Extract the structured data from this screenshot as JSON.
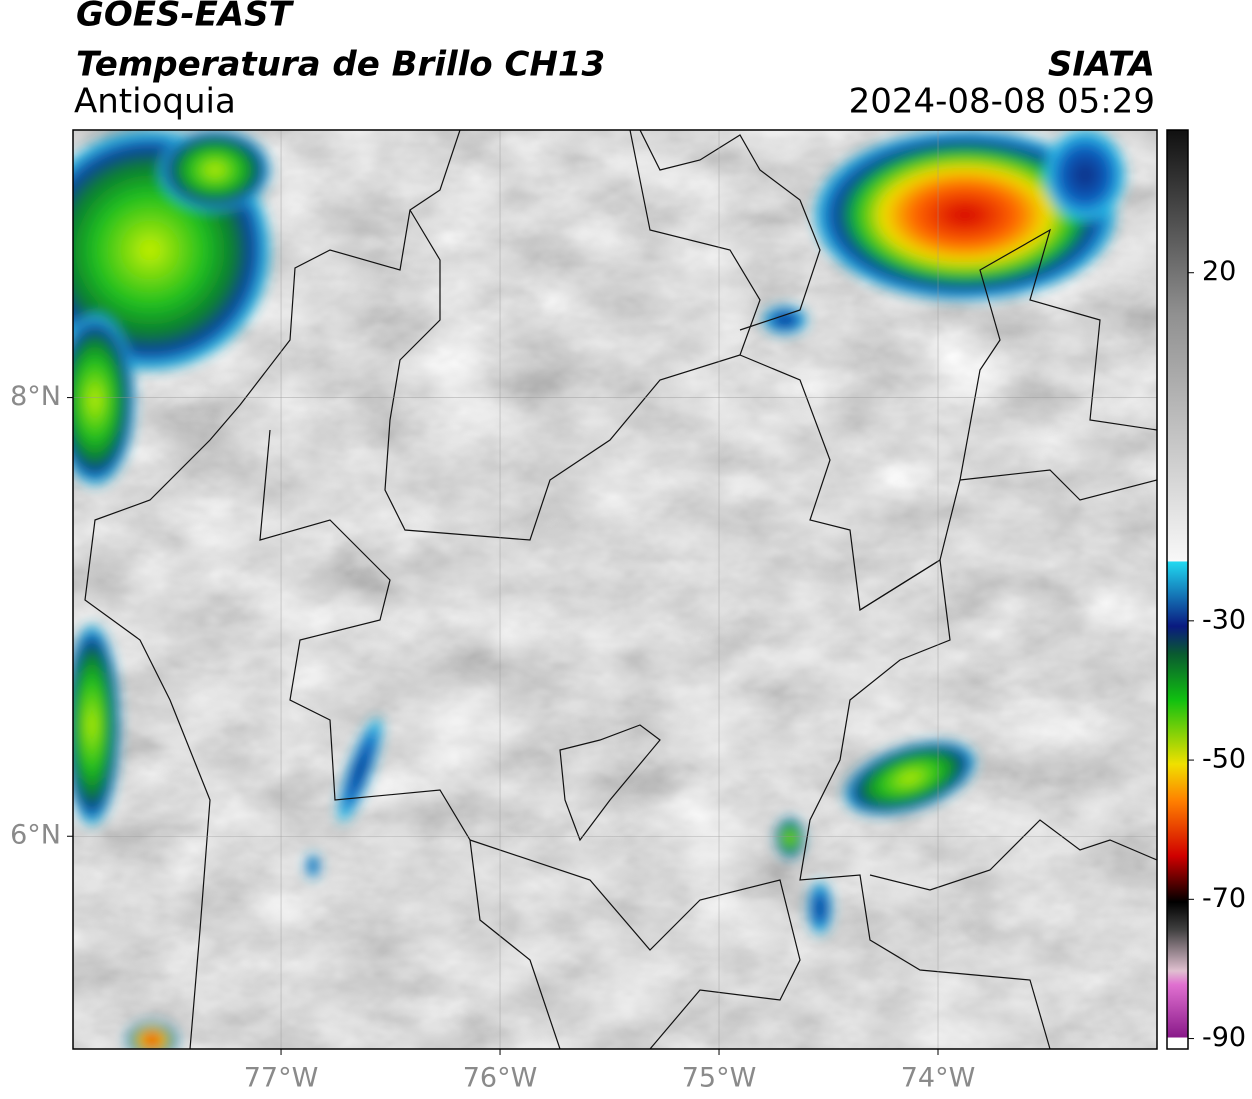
{
  "header": {
    "title": "GOES-EAST",
    "subtitle": "Temperatura de Brillo CH13",
    "region": "Antioquia",
    "source": "SIATA",
    "datetime": "2024-08-08 05:29"
  },
  "map": {
    "xlim": [
      -77.95,
      -73.0
    ],
    "ylim": [
      5.03,
      9.22
    ],
    "xticks": [
      {
        "value": -77,
        "label": "77°W"
      },
      {
        "value": -76,
        "label": "76°W"
      },
      {
        "value": -75,
        "label": "75°W"
      },
      {
        "value": -74,
        "label": "74°W"
      }
    ],
    "yticks": [
      {
        "value": 8,
        "label": "8°N"
      },
      {
        "value": 6,
        "label": "6°N"
      }
    ],
    "grid": true
  },
  "colorbar": {
    "lim": [
      -91.5,
      40.5
    ],
    "ticks": [
      20,
      -30,
      -50,
      -70,
      -90
    ]
  }
}
